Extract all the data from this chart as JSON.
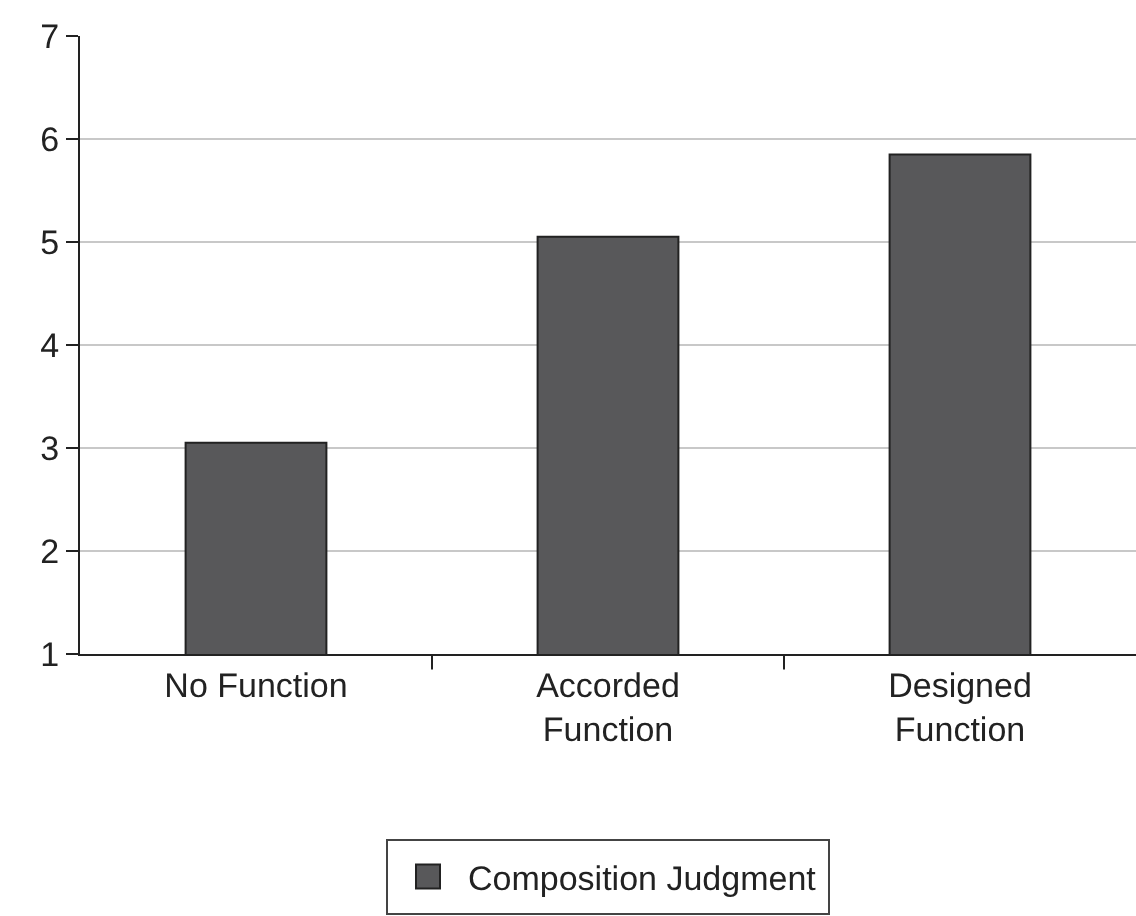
{
  "chart_data": {
    "type": "bar",
    "categories": [
      "No Function",
      "Accorded\nFunction",
      "Designed\nFunction"
    ],
    "series": [
      {
        "name": "Composition Judgment",
        "color": "#58585a",
        "values": [
          3.05,
          5.05,
          5.85
        ]
      }
    ],
    "ylim": [
      1,
      7
    ],
    "yticks": [
      1,
      2,
      3,
      4,
      5,
      6,
      7
    ],
    "grid": "y",
    "legend": "bottom"
  }
}
